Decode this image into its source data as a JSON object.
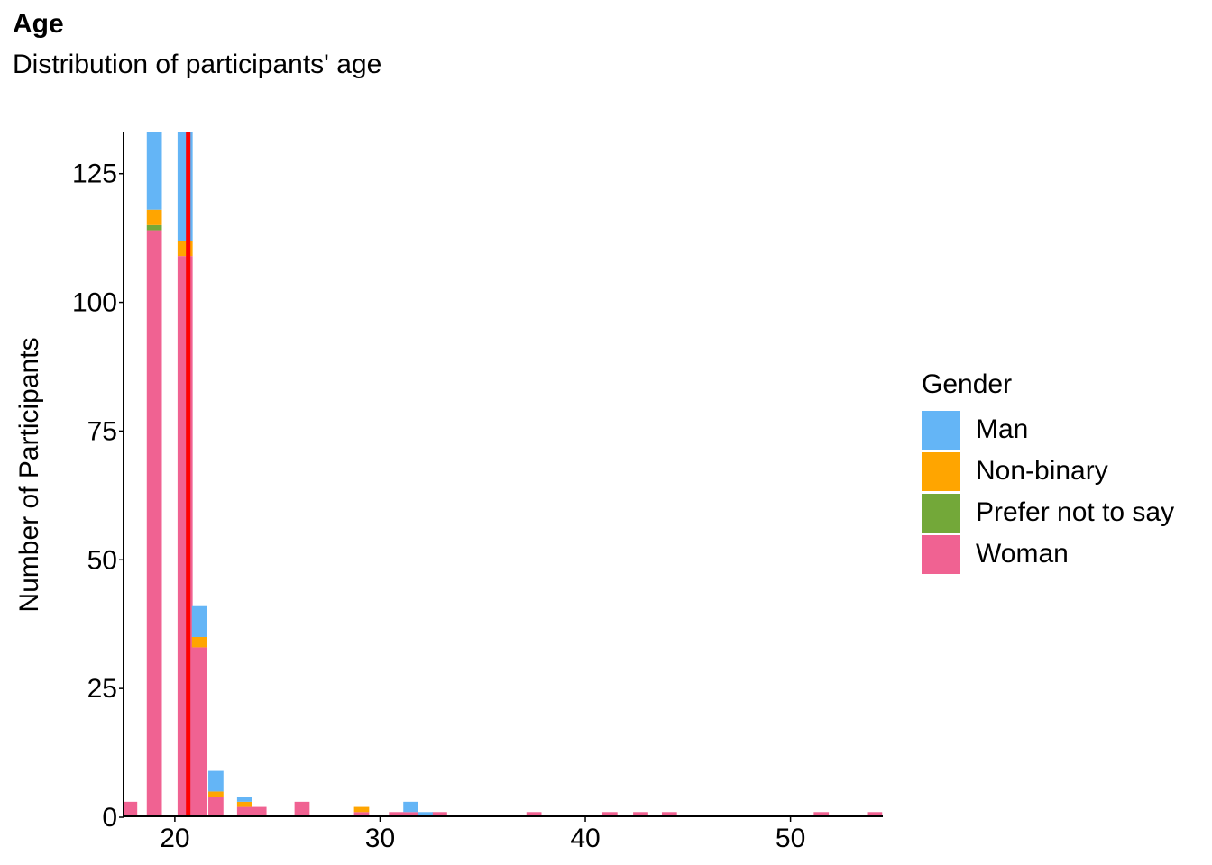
{
  "chart_data": {
    "type": "bar",
    "stacked": true,
    "title": "Age",
    "subtitle": "Distribution of participants' age",
    "xlabel": "",
    "ylabel": "Number of Participants",
    "xlim": [
      17.5,
      54.5
    ],
    "ylim": [
      0,
      133
    ],
    "xticks": [
      20,
      30,
      40,
      50
    ],
    "yticks": [
      0,
      25,
      50,
      75,
      100,
      125
    ],
    "bin_width": 0.735,
    "reference_line": {
      "x": 20.65,
      "color": "#ff0000"
    },
    "legend_title": "Gender",
    "legend_position": "right",
    "series": [
      {
        "name": "Woman",
        "color": "#f06292",
        "x": [
          17.8,
          19.0,
          20.5,
          21.2,
          22.0,
          23.4,
          24.1,
          26.2,
          29.1,
          30.8,
          31.5,
          32.9,
          37.5,
          41.2,
          42.7,
          44.1,
          51.5,
          54.1
        ],
        "values": [
          3,
          114,
          109,
          33,
          4,
          2,
          2,
          3,
          1,
          1,
          1,
          1,
          1,
          1,
          1,
          1,
          1,
          1
        ]
      },
      {
        "name": "Prefer not to say",
        "color": "#73a839",
        "x": [
          19.0
        ],
        "values": [
          1
        ]
      },
      {
        "name": "Non-binary",
        "color": "#ffa500",
        "x": [
          19.0,
          20.5,
          21.2,
          22.0,
          23.4,
          29.1
        ],
        "values": [
          3,
          3,
          2,
          1,
          1,
          1
        ]
      },
      {
        "name": "Man",
        "color": "#64b5f6",
        "x": [
          19.0,
          20.5,
          21.2,
          22.0,
          23.4,
          31.5,
          32.2
        ],
        "values": [
          15,
          21,
          6,
          4,
          1,
          2,
          1
        ]
      }
    ]
  }
}
